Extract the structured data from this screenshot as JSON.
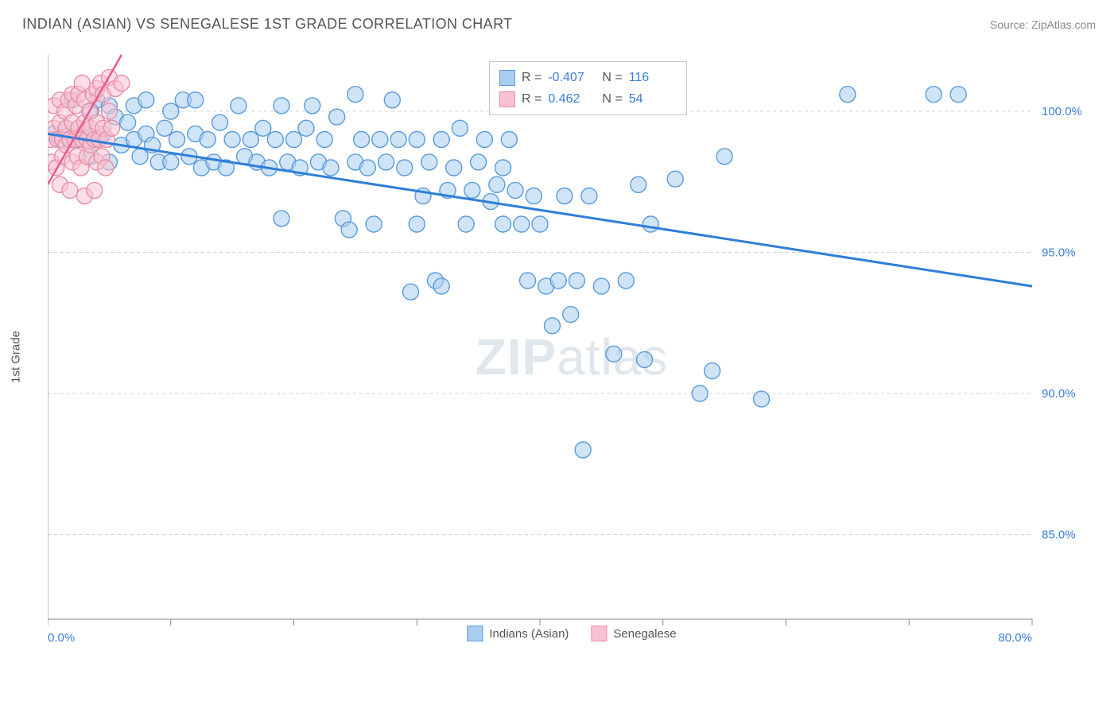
{
  "title": "INDIAN (ASIAN) VS SENEGALESE 1ST GRADE CORRELATION CHART",
  "source_label": "Source: ZipAtlas.com",
  "ylabel": "1st Grade",
  "watermark": {
    "part1": "ZIP",
    "part2": "atlas"
  },
  "chart": {
    "type": "scatter",
    "xlim": [
      0,
      80
    ],
    "ylim": [
      82,
      102
    ],
    "x_ticks": [
      0,
      80
    ],
    "x_tick_labels": [
      "0.0%",
      "80.0%"
    ],
    "x_minor_ticks": [
      10,
      20,
      30,
      40,
      50,
      60,
      70
    ],
    "y_ticks": [
      85,
      90,
      95,
      100
    ],
    "y_tick_labels": [
      "85.0%",
      "90.0%",
      "95.0%",
      "100.0%"
    ],
    "background_color": "#ffffff",
    "grid_color": "#d0d0d0",
    "marker_radius": 10,
    "series": [
      {
        "name": "Indians (Asian)",
        "color_fill": "#a8cef0",
        "color_stroke": "#5a9bdc",
        "R": "-0.407",
        "N": "116",
        "trend": {
          "x1": 0,
          "y1": 99.2,
          "x2": 80,
          "y2": 93.8,
          "color": "#2f7ed8",
          "width": 3
        },
        "points": [
          [
            0.5,
            99.2
          ],
          [
            1,
            99.0
          ],
          [
            1.5,
            99.4
          ],
          [
            2,
            99.1
          ],
          [
            2,
            100.4
          ],
          [
            2.5,
            99.0
          ],
          [
            3,
            99.2
          ],
          [
            3.5,
            98.4
          ],
          [
            3.5,
            100.0
          ],
          [
            4,
            100.4
          ],
          [
            4,
            99.0
          ],
          [
            4.5,
            99.2
          ],
          [
            5,
            100.2
          ],
          [
            5,
            98.2
          ],
          [
            5.5,
            99.8
          ],
          [
            6,
            98.8
          ],
          [
            6.5,
            99.6
          ],
          [
            7,
            99.0
          ],
          [
            7,
            100.2
          ],
          [
            7.5,
            98.4
          ],
          [
            8,
            99.2
          ],
          [
            8,
            100.4
          ],
          [
            8.5,
            98.8
          ],
          [
            9,
            98.2
          ],
          [
            9.5,
            99.4
          ],
          [
            10,
            100.0
          ],
          [
            10,
            98.2
          ],
          [
            10.5,
            99.0
          ],
          [
            11,
            100.4
          ],
          [
            11.5,
            98.4
          ],
          [
            12,
            99.2
          ],
          [
            12,
            100.4
          ],
          [
            12.5,
            98.0
          ],
          [
            13,
            99.0
          ],
          [
            13.5,
            98.2
          ],
          [
            14,
            99.6
          ],
          [
            14.5,
            98.0
          ],
          [
            15,
            99.0
          ],
          [
            15.5,
            100.2
          ],
          [
            16,
            98.4
          ],
          [
            16.5,
            99.0
          ],
          [
            17,
            98.2
          ],
          [
            17.5,
            99.4
          ],
          [
            18,
            98.0
          ],
          [
            18.5,
            99.0
          ],
          [
            19,
            100.2
          ],
          [
            19.5,
            98.2
          ],
          [
            19,
            96.2
          ],
          [
            20,
            99.0
          ],
          [
            20.5,
            98.0
          ],
          [
            21,
            99.4
          ],
          [
            21.5,
            100.2
          ],
          [
            22,
            98.2
          ],
          [
            22.5,
            99.0
          ],
          [
            23,
            98.0
          ],
          [
            23.5,
            99.8
          ],
          [
            24,
            96.2
          ],
          [
            24.5,
            95.8
          ],
          [
            25,
            98.2
          ],
          [
            25.5,
            99.0
          ],
          [
            25,
            100.6
          ],
          [
            26,
            98.0
          ],
          [
            26.5,
            96.0
          ],
          [
            27,
            99.0
          ],
          [
            27.5,
            98.2
          ],
          [
            28,
            100.4
          ],
          [
            28.5,
            99.0
          ],
          [
            29,
            98.0
          ],
          [
            29.5,
            93.6
          ],
          [
            30,
            99.0
          ],
          [
            30,
            96.0
          ],
          [
            30.5,
            97.0
          ],
          [
            31,
            98.2
          ],
          [
            31.5,
            94.0
          ],
          [
            32,
            99.0
          ],
          [
            32.5,
            97.2
          ],
          [
            32,
            93.8
          ],
          [
            33,
            98.0
          ],
          [
            33.5,
            99.4
          ],
          [
            34,
            96.0
          ],
          [
            34.5,
            97.2
          ],
          [
            35,
            98.2
          ],
          [
            35.5,
            99.0
          ],
          [
            36,
            96.8
          ],
          [
            36.5,
            97.4
          ],
          [
            37,
            98.0
          ],
          [
            37.5,
            99.0
          ],
          [
            37,
            96.0
          ],
          [
            38,
            97.2
          ],
          [
            38.5,
            96.0
          ],
          [
            39,
            94.0
          ],
          [
            39.5,
            97.0
          ],
          [
            40,
            96.0
          ],
          [
            40.5,
            93.8
          ],
          [
            41,
            92.4
          ],
          [
            41.5,
            94.0
          ],
          [
            42,
            97.0
          ],
          [
            42.5,
            92.8
          ],
          [
            43,
            94.0
          ],
          [
            43.5,
            88.0
          ],
          [
            44,
            97.0
          ],
          [
            44,
            100.6
          ],
          [
            45,
            93.8
          ],
          [
            46,
            91.4
          ],
          [
            47,
            94.0
          ],
          [
            48,
            97.4
          ],
          [
            48.5,
            91.2
          ],
          [
            49,
            96.0
          ],
          [
            51,
            97.6
          ],
          [
            53,
            90.0
          ],
          [
            55,
            98.4
          ],
          [
            54,
            90.8
          ],
          [
            58,
            89.8
          ],
          [
            65,
            100.6
          ],
          [
            72,
            100.6
          ],
          [
            74,
            100.6
          ]
        ]
      },
      {
        "name": "Senegalese",
        "color_fill": "#f9c2d2",
        "color_stroke": "#e88fa8",
        "R": "0.462",
        "N": "54",
        "trend": {
          "x1": 0,
          "y1": 97.4,
          "x2": 6,
          "y2": 102.0,
          "color": "#e85a8a",
          "width": 2.5
        },
        "points": [
          [
            0.2,
            99.0
          ],
          [
            0.3,
            98.2
          ],
          [
            0.5,
            99.4
          ],
          [
            0.5,
            100.2
          ],
          [
            0.7,
            98.0
          ],
          [
            0.8,
            99.0
          ],
          [
            1.0,
            99.6
          ],
          [
            1.0,
            100.4
          ],
          [
            1.0,
            97.4
          ],
          [
            1.2,
            98.4
          ],
          [
            1.2,
            99.0
          ],
          [
            1.4,
            100.0
          ],
          [
            1.5,
            98.8
          ],
          [
            1.5,
            99.4
          ],
          [
            1.7,
            100.4
          ],
          [
            1.8,
            99.0
          ],
          [
            1.8,
            97.2
          ],
          [
            2.0,
            99.6
          ],
          [
            2.0,
            100.6
          ],
          [
            2.0,
            98.2
          ],
          [
            2.2,
            99.0
          ],
          [
            2.3,
            100.2
          ],
          [
            2.4,
            98.4
          ],
          [
            2.5,
            99.4
          ],
          [
            2.5,
            100.6
          ],
          [
            2.7,
            98.0
          ],
          [
            2.8,
            99.0
          ],
          [
            2.8,
            101.0
          ],
          [
            3.0,
            99.6
          ],
          [
            3.0,
            100.4
          ],
          [
            3.0,
            97.0
          ],
          [
            3.2,
            98.4
          ],
          [
            3.2,
            99.0
          ],
          [
            3.4,
            100.0
          ],
          [
            3.5,
            98.8
          ],
          [
            3.5,
            99.4
          ],
          [
            3.7,
            100.6
          ],
          [
            3.8,
            99.0
          ],
          [
            3.8,
            97.2
          ],
          [
            4.0,
            99.6
          ],
          [
            4.0,
            100.8
          ],
          [
            4.0,
            98.2
          ],
          [
            4.2,
            99.0
          ],
          [
            4.3,
            101.0
          ],
          [
            4.4,
            98.4
          ],
          [
            4.5,
            99.4
          ],
          [
            4.5,
            100.6
          ],
          [
            4.7,
            98.0
          ],
          [
            4.8,
            99.0
          ],
          [
            5.0,
            101.2
          ],
          [
            5.0,
            100.0
          ],
          [
            5.2,
            99.4
          ],
          [
            5.5,
            100.8
          ],
          [
            6.0,
            101.0
          ]
        ]
      }
    ]
  },
  "legend_stats": {
    "r_label": "R =",
    "n_label": "N ="
  },
  "bottom_legend": {
    "item1": "Indians (Asian)",
    "item2": "Senegalese"
  }
}
